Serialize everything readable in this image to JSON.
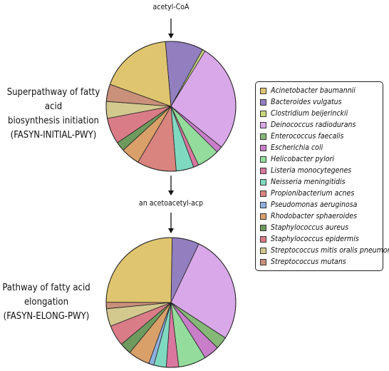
{
  "metabolites": {
    "top": "acetyl-CoA",
    "middle": "an acetoacetyl-acp"
  },
  "pathways": {
    "initiation": {
      "line1": "Superpathway of fatty acid",
      "line2": "biosynthesis initiation",
      "line3": "(FASYN-INITIAL-PWY)"
    },
    "elongation": {
      "line1": "Pathway of fatty acid",
      "line2": "elongation",
      "line3": "(FASYN-ELONG-PWY)"
    }
  },
  "legend": [
    {
      "label": "Acinetobacter baumannii",
      "color": "#dfc56f"
    },
    {
      "label": "Bacteroides vulgatus",
      "color": "#917fbf"
    },
    {
      "label": "Clostridium beijerinckii",
      "color": "#c8d97c"
    },
    {
      "label": "Deinococcus radiodurans",
      "color": "#d9a8e8"
    },
    {
      "label": "Enterococcus faecalis",
      "color": "#86b977"
    },
    {
      "label": "Escherichia coli",
      "color": "#c87ec9"
    },
    {
      "label": "Helicobacter pylori",
      "color": "#94dc9c"
    },
    {
      "label": "Listeria monocytegenes",
      "color": "#d9779f"
    },
    {
      "label": "Neisseria meningitidis",
      "color": "#7fd9c1"
    },
    {
      "label": "Propionibacterium acnes",
      "color": "#d9847f"
    },
    {
      "label": "Pseudomonas aeruginosa",
      "color": "#8db0e0"
    },
    {
      "label": "Rhodobacter sphaeroides",
      "color": "#d9a069"
    },
    {
      "label": "Staphylococcus aureus",
      "color": "#6e9a5e"
    },
    {
      "label": "Staphylococcus epidermis",
      "color": "#d97c88"
    },
    {
      "label": "Streptococcus mitis oralis pneumoniae",
      "color": "#d3c98f"
    },
    {
      "label": "Streptococcus mutans",
      "color": "#c9907a"
    }
  ],
  "chart_data": [
    {
      "type": "pie",
      "title": "Superpathway of fatty acid biosynthesis initiation (FASYN-INITIAL-PWY)",
      "start_angle_deg": 95,
      "direction": "clockwise",
      "slices": [
        {
          "label": "Bacteroides vulgatus",
          "value": 9.5
        },
        {
          "label": "Clostridium beijerinckii",
          "value": 0.7
        },
        {
          "label": "Deinococcus radiodurans",
          "value": 27
        },
        {
          "label": "Escherichia coli",
          "value": 1.6
        },
        {
          "label": "Helicobacter pylori",
          "value": 5.6
        },
        {
          "label": "Listeria monocytegenes",
          "value": 1.3
        },
        {
          "label": "Neisseria meningitidis",
          "value": 4.4
        },
        {
          "label": "Propionibacterium acnes",
          "value": 9.8
        },
        {
          "label": "Rhodobacter sphaeroides",
          "value": 4.7
        },
        {
          "label": "Staphylococcus aureus",
          "value": 2.3
        },
        {
          "label": "Staphylococcus epidermis",
          "value": 6.5
        },
        {
          "label": "Streptococcus mitis oralis pneumoniae",
          "value": 4.2
        },
        {
          "label": "Streptococcus mutans",
          "value": 4.3
        },
        {
          "label": "Acinetobacter baumannii",
          "value": 18.1
        }
      ]
    },
    {
      "type": "pie",
      "title": "Pathway of fatty acid elongation (FASYN-ELONG-PWY)",
      "start_angle_deg": 89,
      "direction": "clockwise",
      "slices": [
        {
          "label": "Bacteroides vulgatus",
          "value": 6.8
        },
        {
          "label": "Deinococcus radiodurans",
          "value": 27.1
        },
        {
          "label": "Enterococcus faecalis",
          "value": 3.1
        },
        {
          "label": "Escherichia coli",
          "value": 3.9
        },
        {
          "label": "Helicobacter pylori",
          "value": 6.9
        },
        {
          "label": "Listeria monocytegenes",
          "value": 3.1
        },
        {
          "label": "Neisseria meningitidis",
          "value": 3.1
        },
        {
          "label": "Pseudomonas aeruginosa",
          "value": 1.3
        },
        {
          "label": "Rhodobacter sphaeroides",
          "value": 5.4
        },
        {
          "label": "Staphylococcus aureus",
          "value": 2.9
        },
        {
          "label": "Staphylococcus epidermis",
          "value": 5.2
        },
        {
          "label": "Streptococcus mitis oralis pneumoniae",
          "value": 4.4
        },
        {
          "label": "Streptococcus mutans",
          "value": 1.6
        },
        {
          "label": "Acinetobacter baumannii",
          "value": 25.2
        }
      ]
    }
  ]
}
